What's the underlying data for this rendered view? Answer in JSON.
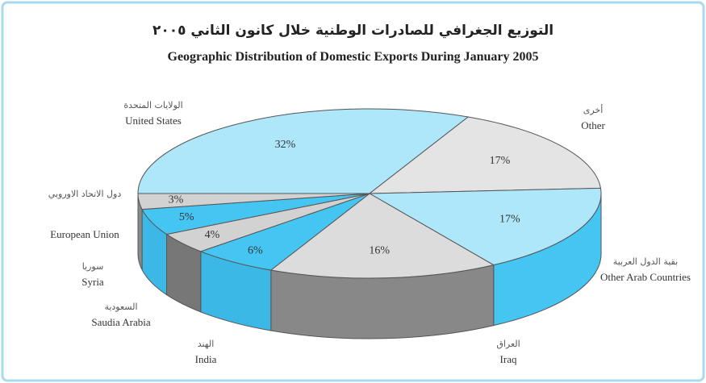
{
  "chart_data": {
    "type": "pie3d",
    "title_ar": "التوزيع الجغرافي للصادرات الوطنية خلال كانون الثاني ٢٠٠٥",
    "title": "Geographic Distribution of Domestic Exports During January 2005",
    "categories": [
      "United States",
      "Other",
      "Other Arab Countries",
      "Iraq",
      "India",
      "Saudia Arabia",
      "Syria",
      "European Union"
    ],
    "categories_ar": [
      "الولايات المتحدة",
      "أخرى",
      "بقية الدول العربية",
      "العراق",
      "الهند",
      "السعودية",
      "سوريا",
      "دول الاتحاد الاوروبي"
    ],
    "values": [
      32,
      17,
      17,
      16,
      6,
      4,
      5,
      3
    ],
    "value_labels": [
      "32%",
      "17%",
      "17%",
      "16%",
      "6%",
      "4%",
      "5%",
      "3%"
    ],
    "colors": [
      "#aee6fa",
      "#e4e4e4",
      "#aee6fa",
      "#dcdcdc",
      "#45c6f2",
      "#d2d2d2",
      "#45c6f2",
      "#d2d2d2"
    ],
    "side_colors": [
      "#6fd0f2",
      "#b0b0b0",
      "#45c6f2",
      "#888888",
      "#3bb8e6",
      "#777777",
      "#3bb8e6",
      "#8a8a8a"
    ]
  }
}
